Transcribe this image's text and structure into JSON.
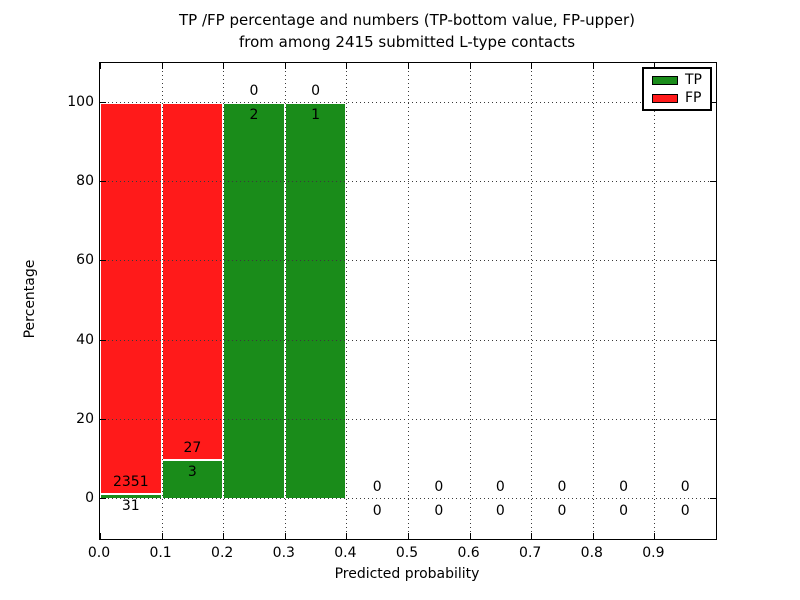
{
  "figure": {
    "background": "#ffffff"
  },
  "title": {
    "line1": "TP /FP percentage and numbers (TP-bottom value, FP-upper)",
    "line2": "from among 2415 submitted L-type contacts"
  },
  "axes": {
    "xlabel": "Predicted probability",
    "ylabel": "Percentage",
    "x_ticks": [
      "0.0",
      "0.1",
      "0.2",
      "0.3",
      "0.4",
      "0.5",
      "0.6",
      "0.7",
      "0.8",
      "0.9"
    ],
    "y_ticks": [
      "0",
      "20",
      "40",
      "60",
      "80",
      "100"
    ],
    "xlim": [
      0.0,
      1.0
    ],
    "ylim": [
      -10,
      110
    ],
    "grid": "dotted"
  },
  "legend": {
    "position": "upper-right",
    "items": [
      {
        "label": "TP",
        "color": "#1a8c1a"
      },
      {
        "label": "FP",
        "color": "#ff1a1a"
      }
    ]
  },
  "chart_data": {
    "type": "bar",
    "stacked": true,
    "title": "TP /FP percentage and numbers (TP-bottom value, FP-upper) from among 2415 submitted L-type contacts",
    "xlabel": "Predicted probability",
    "ylabel": "Percentage",
    "total_contacts": 2415,
    "bin_width": 0.1,
    "colors": {
      "tp": "#1a8c1a",
      "fp": "#ff1a1a"
    },
    "grid": true,
    "legend_position": "upper-right",
    "bins": [
      {
        "range": [
          0.0,
          0.1
        ],
        "tp_count": 31,
        "fp_count": 2351,
        "tp_pct": 1.3,
        "fp_pct": 98.7
      },
      {
        "range": [
          0.1,
          0.2
        ],
        "tp_count": 3,
        "fp_count": 27,
        "tp_pct": 10.0,
        "fp_pct": 90.0
      },
      {
        "range": [
          0.2,
          0.3
        ],
        "tp_count": 2,
        "fp_count": 0,
        "tp_pct": 100.0,
        "fp_pct": 0.0
      },
      {
        "range": [
          0.3,
          0.4
        ],
        "tp_count": 1,
        "fp_count": 0,
        "tp_pct": 100.0,
        "fp_pct": 0.0
      },
      {
        "range": [
          0.4,
          0.5
        ],
        "tp_count": 0,
        "fp_count": 0,
        "tp_pct": 0.0,
        "fp_pct": 0.0
      },
      {
        "range": [
          0.5,
          0.6
        ],
        "tp_count": 0,
        "fp_count": 0,
        "tp_pct": 0.0,
        "fp_pct": 0.0
      },
      {
        "range": [
          0.6,
          0.7
        ],
        "tp_count": 0,
        "fp_count": 0,
        "tp_pct": 0.0,
        "fp_pct": 0.0
      },
      {
        "range": [
          0.7,
          0.8
        ],
        "tp_count": 0,
        "fp_count": 0,
        "tp_pct": 0.0,
        "fp_pct": 0.0
      },
      {
        "range": [
          0.8,
          0.9
        ],
        "tp_count": 0,
        "fp_count": 0,
        "tp_pct": 0.0,
        "fp_pct": 0.0
      },
      {
        "range": [
          0.9,
          1.0
        ],
        "tp_count": 0,
        "fp_count": 0,
        "tp_pct": 0.0,
        "fp_pct": 0.0
      }
    ]
  }
}
